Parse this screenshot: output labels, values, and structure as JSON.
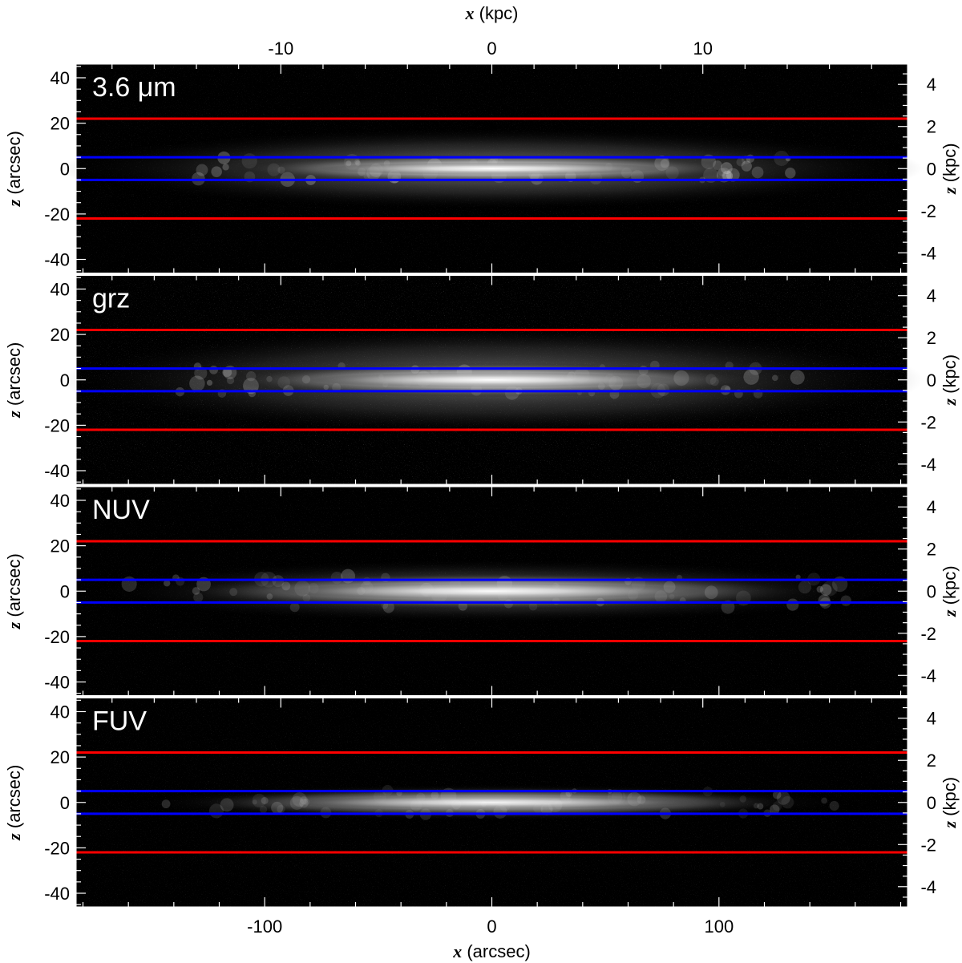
{
  "chart_data": {
    "type": "image-panels",
    "top_axis": {
      "label_var": "x",
      "label_unit": " (kpc)",
      "ticks": [
        -10,
        0,
        10
      ],
      "range": [
        -19.7,
        19.7
      ]
    },
    "bottom_axis": {
      "label_var": "x",
      "label_unit": " (arcsec)",
      "ticks": [
        -100,
        0,
        100
      ],
      "range": [
        -183,
        183
      ]
    },
    "left_axis": {
      "label_var": "z",
      "label_unit": " (arcsec)",
      "ticks": [
        40,
        20,
        0,
        -20,
        -40
      ],
      "range": [
        -46,
        46
      ]
    },
    "right_axis": {
      "label_var": "z",
      "label_unit": " (kpc)",
      "ticks": [
        4,
        2,
        0,
        -2,
        -4
      ],
      "range": [
        -4.96,
        4.96
      ]
    },
    "horizontal_lines": [
      {
        "z": 22,
        "color": "#ff0000"
      },
      {
        "z": 5,
        "color": "#0000ff"
      },
      {
        "z": -5,
        "color": "#0000ff"
      },
      {
        "z": -22,
        "color": "#ff0000"
      }
    ],
    "panels": [
      {
        "label": "3.6 μm",
        "core_width": 115,
        "core_height": 4.2,
        "glow_width": 190,
        "glow_height": 18,
        "brightness": 1.0
      },
      {
        "label": "grz",
        "core_width": 120,
        "core_height": 5.5,
        "glow_width": 190,
        "glow_height": 24,
        "brightness": 0.9
      },
      {
        "label": "NUV",
        "core_width": 140,
        "core_height": 6,
        "glow_width": 180,
        "glow_height": 14,
        "brightness": 0.8
      },
      {
        "label": "FUV",
        "core_width": 135,
        "core_height": 4.5,
        "glow_width": 160,
        "glow_height": 8,
        "brightness": 0.7
      }
    ]
  }
}
